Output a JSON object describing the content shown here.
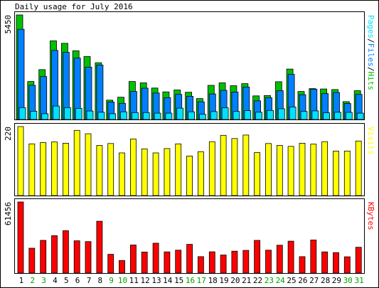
{
  "chart_data": {
    "title": "Daily usage for July 2016",
    "type": "bar",
    "x": [
      "1",
      "2",
      "3",
      "4",
      "5",
      "6",
      "7",
      "8",
      "9",
      "10",
      "11",
      "12",
      "13",
      "14",
      "15",
      "16",
      "17",
      "18",
      "19",
      "20",
      "21",
      "22",
      "23",
      "24",
      "25",
      "26",
      "27",
      "28",
      "29",
      "30",
      "31"
    ],
    "weekend_days": [
      "2",
      "3",
      "9",
      "10",
      "16",
      "17",
      "23",
      "24",
      "30",
      "31"
    ],
    "colors": {
      "hits": "#00c000",
      "files": "#0080ff",
      "pages": "#00e0ff",
      "visits": "#ffff00",
      "kbytes": "#ff0000",
      "weekday_label": "#000000",
      "weekend_label": "#00a000",
      "panel_bg": "#ffffff",
      "page_bg": "#ffffff"
    },
    "panels": [
      {
        "id": "hits-panel",
        "max_label": "5450",
        "ymax": 5450,
        "legend": [
          {
            "text": "Pages",
            "color": "#00e0ff"
          },
          {
            "text": "Files",
            "color": "#0080ff"
          },
          {
            "text": "Hits",
            "color": "#00c000"
          }
        ],
        "legend_sep": {
          "text": "/",
          "color": "#000000"
        },
        "series": [
          {
            "name": "Hits",
            "color": "#00c000",
            "values": [
              5450,
              1980,
              2600,
              4100,
              3970,
              3580,
              3280,
              2960,
              1010,
              1160,
              1980,
              1910,
              1640,
              1440,
              1540,
              1420,
              1090,
              1780,
              1910,
              1760,
              1870,
              1230,
              1250,
              1970,
              2630,
              1460,
              1610,
              1590,
              1560,
              930,
              1500
            ]
          },
          {
            "name": "Files",
            "color": "#0080ff",
            "values": [
              4700,
              1780,
              2240,
              3600,
              3500,
              3200,
              2730,
              2840,
              910,
              840,
              1460,
              1630,
              1380,
              1140,
              1310,
              1210,
              920,
              1330,
              1520,
              1430,
              1690,
              970,
              1140,
              1500,
              2350,
              1290,
              1580,
              1350,
              1410,
              830,
              1310
            ]
          },
          {
            "name": "Pages",
            "color": "#00e0ff",
            "values": [
              620,
              430,
              300,
              700,
              620,
              580,
              440,
              380,
              300,
              400,
              360,
              360,
              330,
              330,
              590,
              400,
              270,
              410,
              610,
              420,
              460,
              380,
              470,
              560,
              650,
              420,
              450,
              350,
              380,
              370,
              330
            ]
          }
        ]
      },
      {
        "id": "visits-panel",
        "max_label": "220",
        "ymax": 220,
        "legend": [
          {
            "text": "Visits",
            "color": "#ffff00"
          }
        ],
        "series": [
          {
            "name": "Visits",
            "color": "#ffff00",
            "values": [
              220,
              165,
              169,
              171,
              167,
              208,
              197,
              160,
              166,
              136,
              180,
              149,
              136,
              150,
              165,
              126,
              140,
              172,
              192,
              182,
              193,
              137,
              166,
              160,
              157,
              167,
              164,
              172,
              142,
              142,
              174
            ]
          }
        ]
      },
      {
        "id": "kbytes-panel",
        "max_label": "61456",
        "ymax": 61456,
        "legend": [
          {
            "text": "KBytes",
            "color": "#ff0000"
          }
        ],
        "series": [
          {
            "name": "KBytes",
            "color": "#ff0000",
            "values": [
              61456,
              21500,
              28300,
              32300,
              36600,
              27900,
              27200,
              44800,
              16200,
              10900,
              24300,
              18200,
              25800,
              18300,
              19800,
              24800,
              14200,
              18400,
              15600,
              18900,
              19600,
              28300,
              19800,
              24100,
              27600,
              14200,
              28600,
              18300,
              17700,
              14100,
              22300
            ]
          }
        ]
      }
    ]
  }
}
